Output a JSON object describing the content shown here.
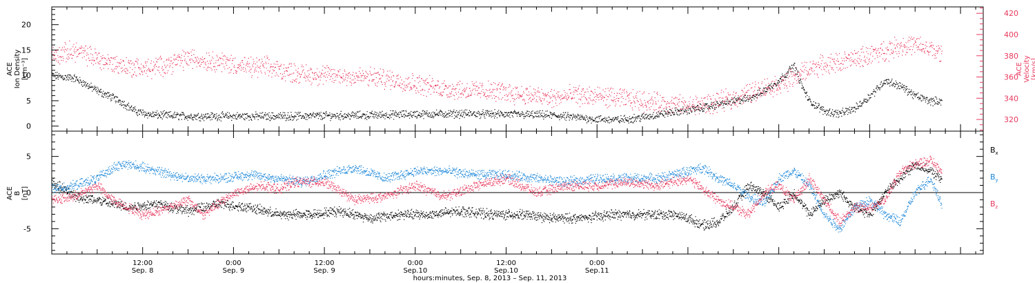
{
  "colors": {
    "black": "#000000",
    "red": "#e8385e",
    "blue": "#1a86d8"
  },
  "chart_data": [
    {
      "type": "scatter",
      "panel": "ace-density-velocity",
      "ylabel_lines": [
        "ACE",
        "Ion Density",
        "[cm⁻³]"
      ],
      "y2label_lines": [
        "ACE",
        "Velocity",
        "[km/s]"
      ],
      "ylim": [
        -1,
        23.5
      ],
      "yticks": [
        0,
        5,
        10,
        15,
        20
      ],
      "y2lim": [
        309,
        426
      ],
      "y2ticks": [
        320,
        340,
        360,
        380,
        400,
        420
      ],
      "series": [
        {
          "axis": "left",
          "color": "#000000",
          "points": [
            [
              0,
              10
            ],
            [
              3,
              9.5
            ],
            [
              6,
              7
            ],
            [
              9,
              5
            ],
            [
              11,
              3
            ],
            [
              13,
              2.3
            ],
            [
              18,
              2
            ],
            [
              24,
              2
            ],
            [
              30,
              2
            ],
            [
              36,
              2.1
            ],
            [
              42,
              2.2
            ],
            [
              48,
              2.4
            ],
            [
              54,
              2.5
            ],
            [
              60,
              2.4
            ],
            [
              66,
              2.2
            ],
            [
              69,
              1.8
            ],
            [
              72,
              1.4
            ],
            [
              75,
              1.3
            ],
            [
              78,
              1.8
            ],
            [
              81,
              2.6
            ],
            [
              84,
              3.2
            ],
            [
              87,
              4
            ],
            [
              90,
              5
            ],
            [
              92,
              5.5
            ],
            [
              94,
              7
            ],
            [
              96,
              9
            ],
            [
              98,
              12
            ],
            [
              99,
              8
            ],
            [
              100,
              5
            ],
            [
              102,
              3
            ],
            [
              104,
              2.5
            ],
            [
              106,
              3.5
            ],
            [
              108,
              6
            ],
            [
              110,
              9
            ],
            [
              112,
              8
            ],
            [
              114,
              6
            ],
            [
              116,
              5
            ],
            [
              117.5,
              5
            ]
          ]
        },
        {
          "axis": "right",
          "color": "#e8385e",
          "points": [
            [
              0,
              380
            ],
            [
              3,
              385
            ],
            [
              5,
              380
            ],
            [
              7,
              375
            ],
            [
              10,
              370
            ],
            [
              13,
              368
            ],
            [
              16,
              374
            ],
            [
              18,
              378
            ],
            [
              20,
              376
            ],
            [
              22,
              375
            ],
            [
              24,
              372
            ],
            [
              26,
              369
            ],
            [
              28,
              370
            ],
            [
              30,
              367
            ],
            [
              33,
              363
            ],
            [
              36,
              362
            ],
            [
              39,
              361
            ],
            [
              42,
              360
            ],
            [
              45,
              358
            ],
            [
              48,
              354
            ],
            [
              51,
              350
            ],
            [
              54,
              348
            ],
            [
              57,
              347
            ],
            [
              60,
              346
            ],
            [
              63,
              343
            ],
            [
              66,
              340
            ],
            [
              69,
              343
            ],
            [
              72,
              342
            ],
            [
              75,
              340
            ],
            [
              78,
              338
            ],
            [
              81,
              335
            ],
            [
              84,
              333
            ],
            [
              87,
              335
            ],
            [
              90,
              340
            ],
            [
              92,
              345
            ],
            [
              94,
              350
            ],
            [
              96,
              353
            ],
            [
              98,
              360
            ],
            [
              100,
              368
            ],
            [
              102,
              372
            ],
            [
              104,
              374
            ],
            [
              106,
              377
            ],
            [
              108,
              381
            ],
            [
              110,
              385
            ],
            [
              112,
              390
            ],
            [
              114,
              390
            ],
            [
              116,
              386
            ],
            [
              117.5,
              382
            ]
          ]
        }
      ]
    },
    {
      "type": "scatter",
      "panel": "ace-magnetic-field",
      "ylabel_lines": [
        "ACE",
        "B",
        "[nT]"
      ],
      "ylim": [
        -8.5,
        8.5
      ],
      "yticks": [
        -5,
        0,
        5
      ],
      "legend_position": "right",
      "series": [
        {
          "name": "Bx",
          "color": "#000000",
          "points": [
            [
              0,
              1.5
            ],
            [
              3,
              -0.5
            ],
            [
              6,
              -1
            ],
            [
              10,
              -2
            ],
            [
              14,
              -1.5
            ],
            [
              18,
              -2.5
            ],
            [
              22,
              -1.5
            ],
            [
              26,
              -2
            ],
            [
              30,
              -3
            ],
            [
              34,
              -3
            ],
            [
              38,
              -2.5
            ],
            [
              42,
              -3.5
            ],
            [
              46,
              -3
            ],
            [
              50,
              -3
            ],
            [
              54,
              -2.5
            ],
            [
              58,
              -3
            ],
            [
              62,
              -3
            ],
            [
              66,
              -3.5
            ],
            [
              70,
              -3.5
            ],
            [
              74,
              -3
            ],
            [
              78,
              -3
            ],
            [
              82,
              -3
            ],
            [
              84,
              -3.5
            ],
            [
              86,
              -4.5
            ],
            [
              88,
              -4
            ],
            [
              90,
              -2
            ],
            [
              92,
              1
            ],
            [
              94,
              0
            ],
            [
              96,
              -2
            ],
            [
              98,
              0
            ],
            [
              100,
              -3
            ],
            [
              102,
              -1
            ],
            [
              104,
              0
            ],
            [
              106,
              -2
            ],
            [
              108,
              -3
            ],
            [
              110,
              0
            ],
            [
              112,
              2
            ],
            [
              114,
              4
            ],
            [
              116,
              3
            ],
            [
              117.5,
              2
            ]
          ]
        },
        {
          "name": "By",
          "color": "#1a86d8",
          "points": [
            [
              0,
              0.5
            ],
            [
              3,
              1
            ],
            [
              6,
              2
            ],
            [
              8,
              3.5
            ],
            [
              10,
              4
            ],
            [
              14,
              3
            ],
            [
              18,
              2
            ],
            [
              22,
              2
            ],
            [
              26,
              2.5
            ],
            [
              30,
              2
            ],
            [
              33,
              1.5
            ],
            [
              36,
              2.5
            ],
            [
              40,
              3.5
            ],
            [
              44,
              2
            ],
            [
              48,
              3
            ],
            [
              52,
              3
            ],
            [
              56,
              2.5
            ],
            [
              60,
              2.5
            ],
            [
              64,
              2
            ],
            [
              68,
              1.5
            ],
            [
              72,
              2
            ],
            [
              76,
              2
            ],
            [
              80,
              2
            ],
            [
              84,
              3
            ],
            [
              86,
              3.5
            ],
            [
              88,
              2
            ],
            [
              90,
              1
            ],
            [
              92,
              -0.5
            ],
            [
              94,
              -1.5
            ],
            [
              96,
              2
            ],
            [
              98,
              3
            ],
            [
              100,
              1
            ],
            [
              102,
              -3
            ],
            [
              104,
              -5
            ],
            [
              106,
              -2
            ],
            [
              108,
              -1
            ],
            [
              110,
              -3
            ],
            [
              112,
              -4
            ],
            [
              114,
              0
            ],
            [
              116,
              2
            ],
            [
              117.5,
              -1.5
            ]
          ]
        },
        {
          "name": "Bz",
          "color": "#e8385e",
          "points": [
            [
              0,
              -1
            ],
            [
              3,
              -0.5
            ],
            [
              6,
              1
            ],
            [
              8,
              -1
            ],
            [
              10,
              -2
            ],
            [
              12,
              -3
            ],
            [
              14,
              -2.5
            ],
            [
              18,
              -1
            ],
            [
              20,
              -3
            ],
            [
              24,
              0
            ],
            [
              28,
              1
            ],
            [
              30,
              0.5
            ],
            [
              32,
              1.5
            ],
            [
              36,
              1.5
            ],
            [
              40,
              -1
            ],
            [
              44,
              -0.5
            ],
            [
              48,
              1
            ],
            [
              52,
              -0.5
            ],
            [
              56,
              1
            ],
            [
              60,
              2
            ],
            [
              64,
              0
            ],
            [
              68,
              1
            ],
            [
              72,
              1
            ],
            [
              76,
              1.5
            ],
            [
              80,
              1
            ],
            [
              84,
              2
            ],
            [
              88,
              -1
            ],
            [
              90,
              -2
            ],
            [
              92,
              -3
            ],
            [
              94,
              0
            ],
            [
              96,
              1
            ],
            [
              98,
              -1
            ],
            [
              100,
              2
            ],
            [
              102,
              -1
            ],
            [
              104,
              -4
            ],
            [
              106,
              -2
            ],
            [
              108,
              -2
            ],
            [
              110,
              -1
            ],
            [
              112,
              3
            ],
            [
              114,
              4
            ],
            [
              116,
              4.5
            ],
            [
              117.5,
              3
            ]
          ]
        }
      ]
    }
  ],
  "legend": {
    "bx": "B",
    "bx_sub": "x",
    "by": "B",
    "by_sub": "y",
    "bz": "B",
    "bz_sub": "z"
  },
  "x_axis": {
    "units": "hours from 2013-09-08 00:00",
    "range": [
      0,
      123
    ],
    "major_ticks": [
      {
        "t": 12,
        "time": "12:00",
        "date": "Sep. 8"
      },
      {
        "t": 24,
        "time": "0:00",
        "date": "Sep. 9"
      },
      {
        "t": 36,
        "time": "12:00",
        "date": "Sep. 9"
      },
      {
        "t": 48,
        "time": "0:00",
        "date": "Sep.10"
      },
      {
        "t": 60,
        "time": "12:00",
        "date": "Sep.10"
      },
      {
        "t": 72,
        "time": "0:00",
        "date": "Sep.11"
      }
    ],
    "title": "hours:minutes, Sep.  8, 2013 – Sep. 11, 2013"
  }
}
